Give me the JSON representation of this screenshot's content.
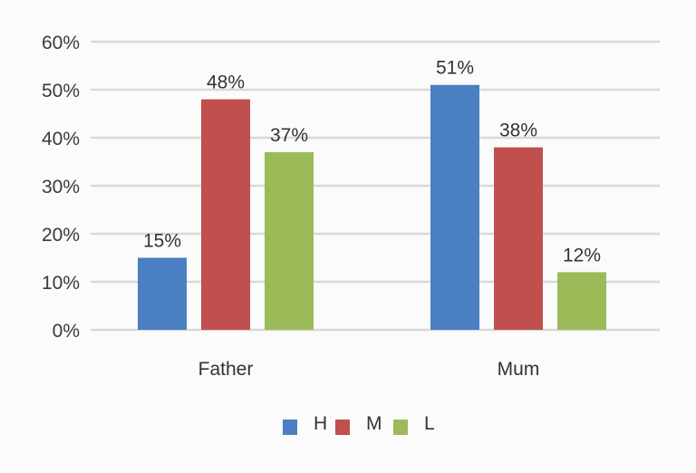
{
  "chart_data": {
    "type": "bar",
    "categories": [
      "Father",
      "Mum"
    ],
    "series": [
      {
        "name": "H",
        "values": [
          15,
          51
        ],
        "labels": [
          "15%",
          "51%"
        ],
        "color": "#4a7fc1"
      },
      {
        "name": "M",
        "values": [
          48,
          38
        ],
        "labels": [
          "48%",
          "38%"
        ],
        "color": "#c0504d"
      },
      {
        "name": "L",
        "values": [
          37,
          12
        ],
        "labels": [
          "37%",
          "12%"
        ],
        "color": "#9bbb59"
      }
    ],
    "ylim": [
      0,
      60
    ],
    "yticks": [
      0,
      10,
      20,
      30,
      40,
      50,
      60
    ],
    "ytick_labels": [
      "0%",
      "10%",
      "20%",
      "30%",
      "40%",
      "50%",
      "60%"
    ],
    "grid": true,
    "legend": "bottom"
  }
}
